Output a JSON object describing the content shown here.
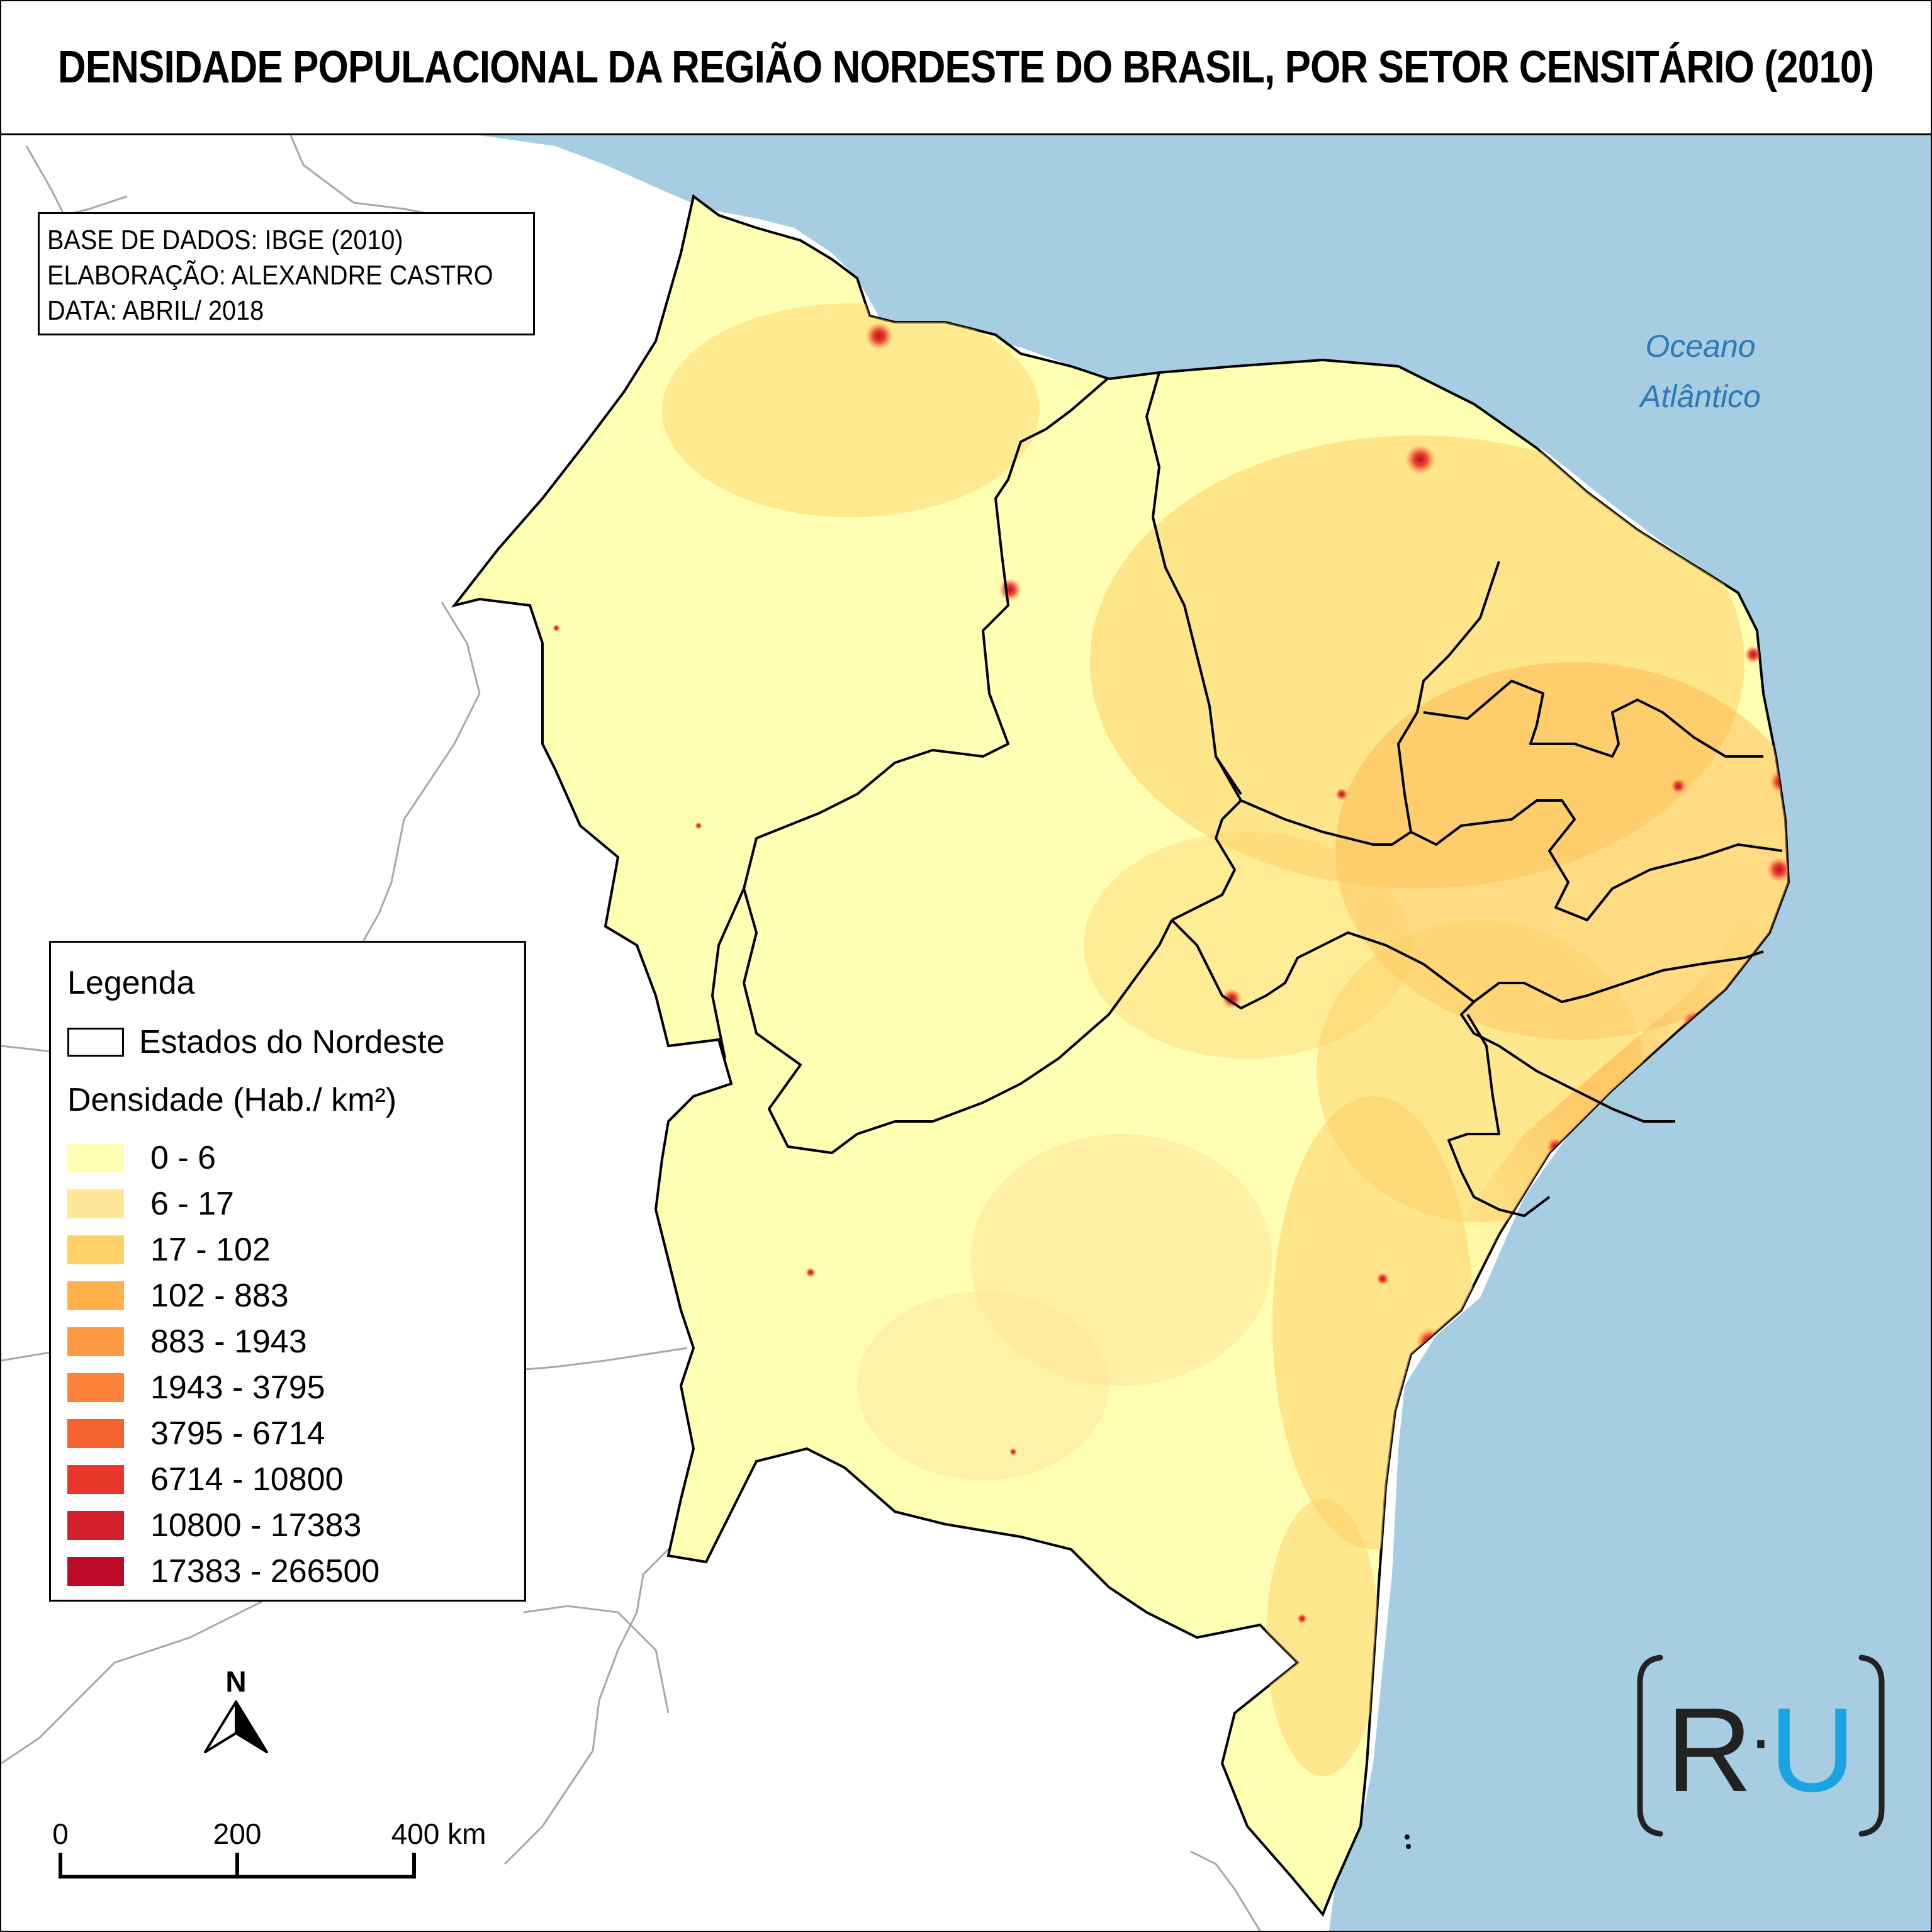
{
  "title": "DENSIDADE POPULACIONAL DA REGIÃO NORDESTE DO BRASIL, POR SETOR CENSITÁRIO (2010)",
  "credits": {
    "source": "BASE DE DADOS: IBGE (2010)",
    "author": "ELABORAÇÃO: ALEXANDRE CASTRO",
    "date": "DATA: ABRIL/ 2018"
  },
  "ocean_label": {
    "line1": "Oceano",
    "line2": "Atlântico"
  },
  "legend": {
    "title": "Legenda",
    "states_label": "Estados do Nordeste",
    "density_title": "Densidade (Hab./ km²)",
    "classes": [
      {
        "label": "0 - 6",
        "color": "#ffffb3"
      },
      {
        "label": "6 - 17",
        "color": "#ffe699"
      },
      {
        "label": "17 - 102",
        "color": "#fed066"
      },
      {
        "label": "102 - 883",
        "color": "#feb24c"
      },
      {
        "label": "883 - 1943",
        "color": "#fe9a42"
      },
      {
        "label": "1943 - 3795",
        "color": "#fd823a"
      },
      {
        "label": "3795 - 6714",
        "color": "#f56430"
      },
      {
        "label": "6714 - 10800",
        "color": "#e8372a"
      },
      {
        "label": "10800 - 17383",
        "color": "#d31f2b"
      },
      {
        "label": "17383 - 266500",
        "color": "#bb0a2a"
      }
    ]
  },
  "north_arrow": {
    "label": "N"
  },
  "scale_bar": {
    "ticks": [
      "0",
      "200",
      "400 km"
    ]
  },
  "logo": {
    "left": "R",
    "dot": "·",
    "right": "U",
    "right_color": "#1aa3e0"
  },
  "colors": {
    "ocean": "#a6cde2",
    "land_outside": "#ffffff",
    "region_base": "#ffffb3",
    "boundary": "#000000"
  }
}
